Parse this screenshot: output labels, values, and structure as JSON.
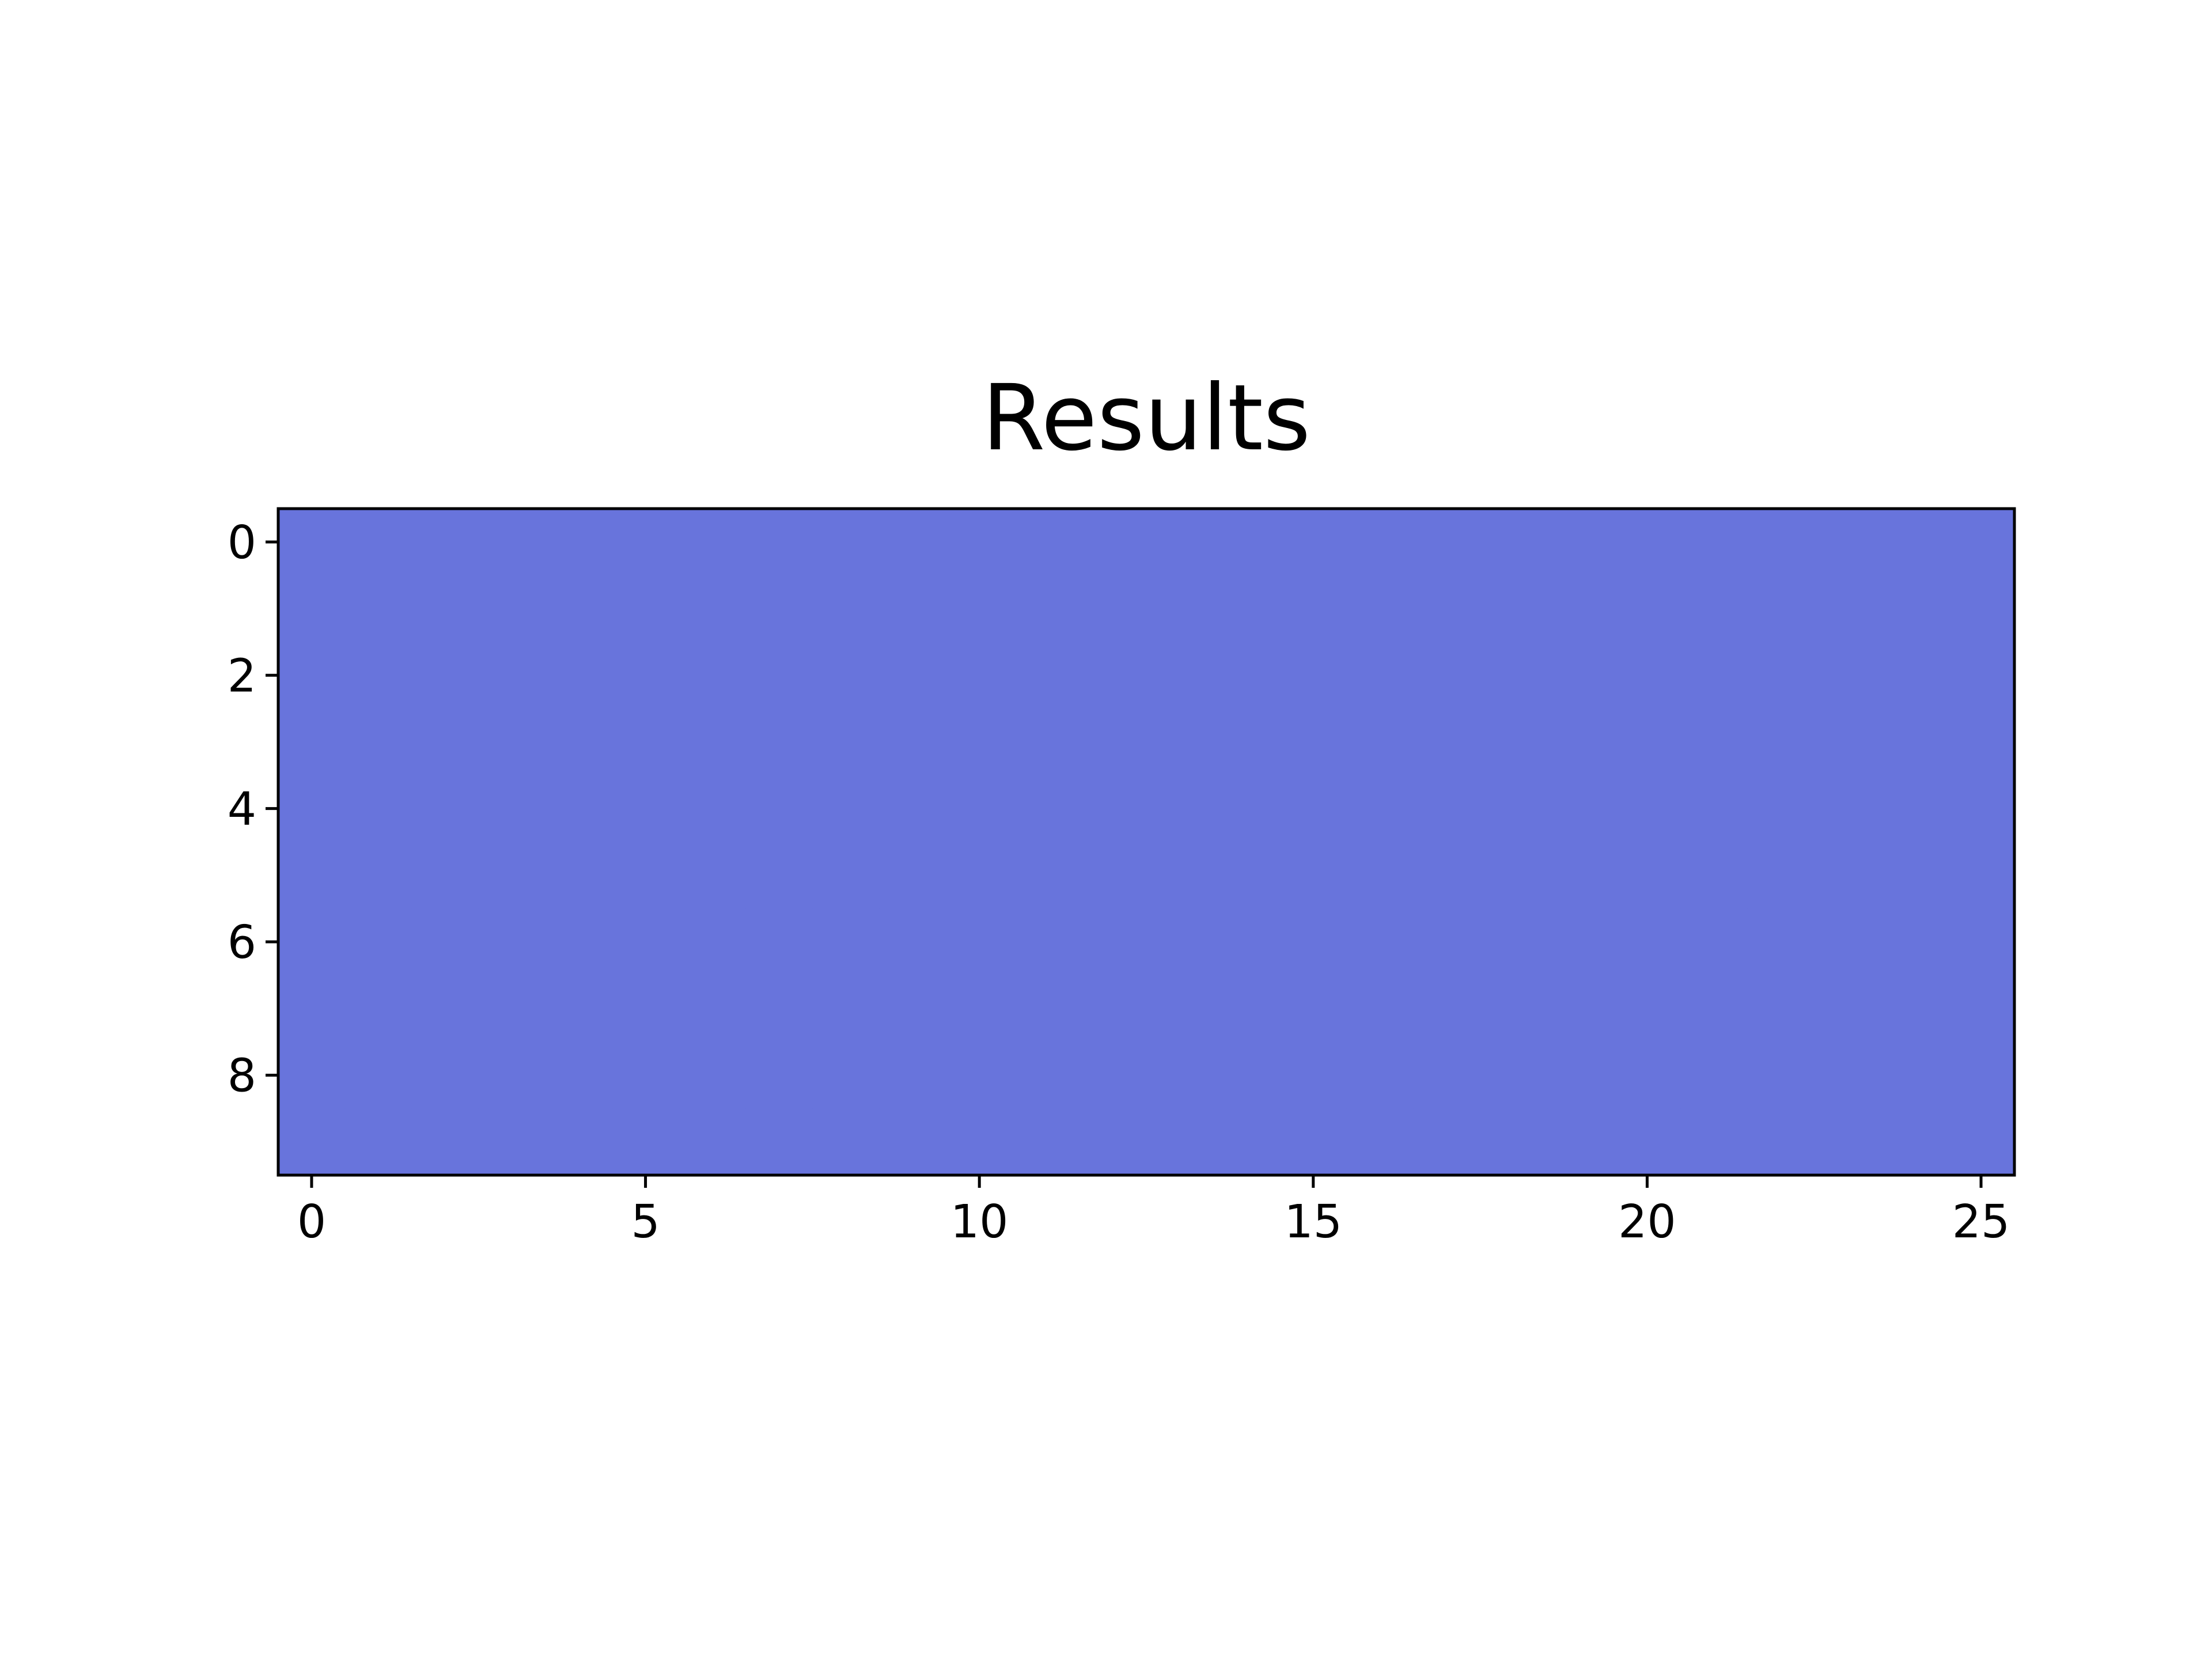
{
  "chart_data": {
    "type": "heatmap",
    "title": "Results",
    "xlabel": "",
    "ylabel": "",
    "rows": 10,
    "cols": 26,
    "xlim": [
      -0.5,
      25.5
    ],
    "ylim": [
      9.5,
      -0.5
    ],
    "x_ticks": [
      0,
      5,
      10,
      15,
      20,
      25
    ],
    "y_ticks": [
      0,
      2,
      4,
      6,
      8
    ],
    "x_tick_labels": [
      "0",
      "5",
      "10",
      "15",
      "20",
      "25"
    ],
    "y_tick_labels": [
      "0",
      "2",
      "4",
      "6",
      "8"
    ],
    "cell_color": "#6874dc",
    "grid": false,
    "legend": "none"
  }
}
